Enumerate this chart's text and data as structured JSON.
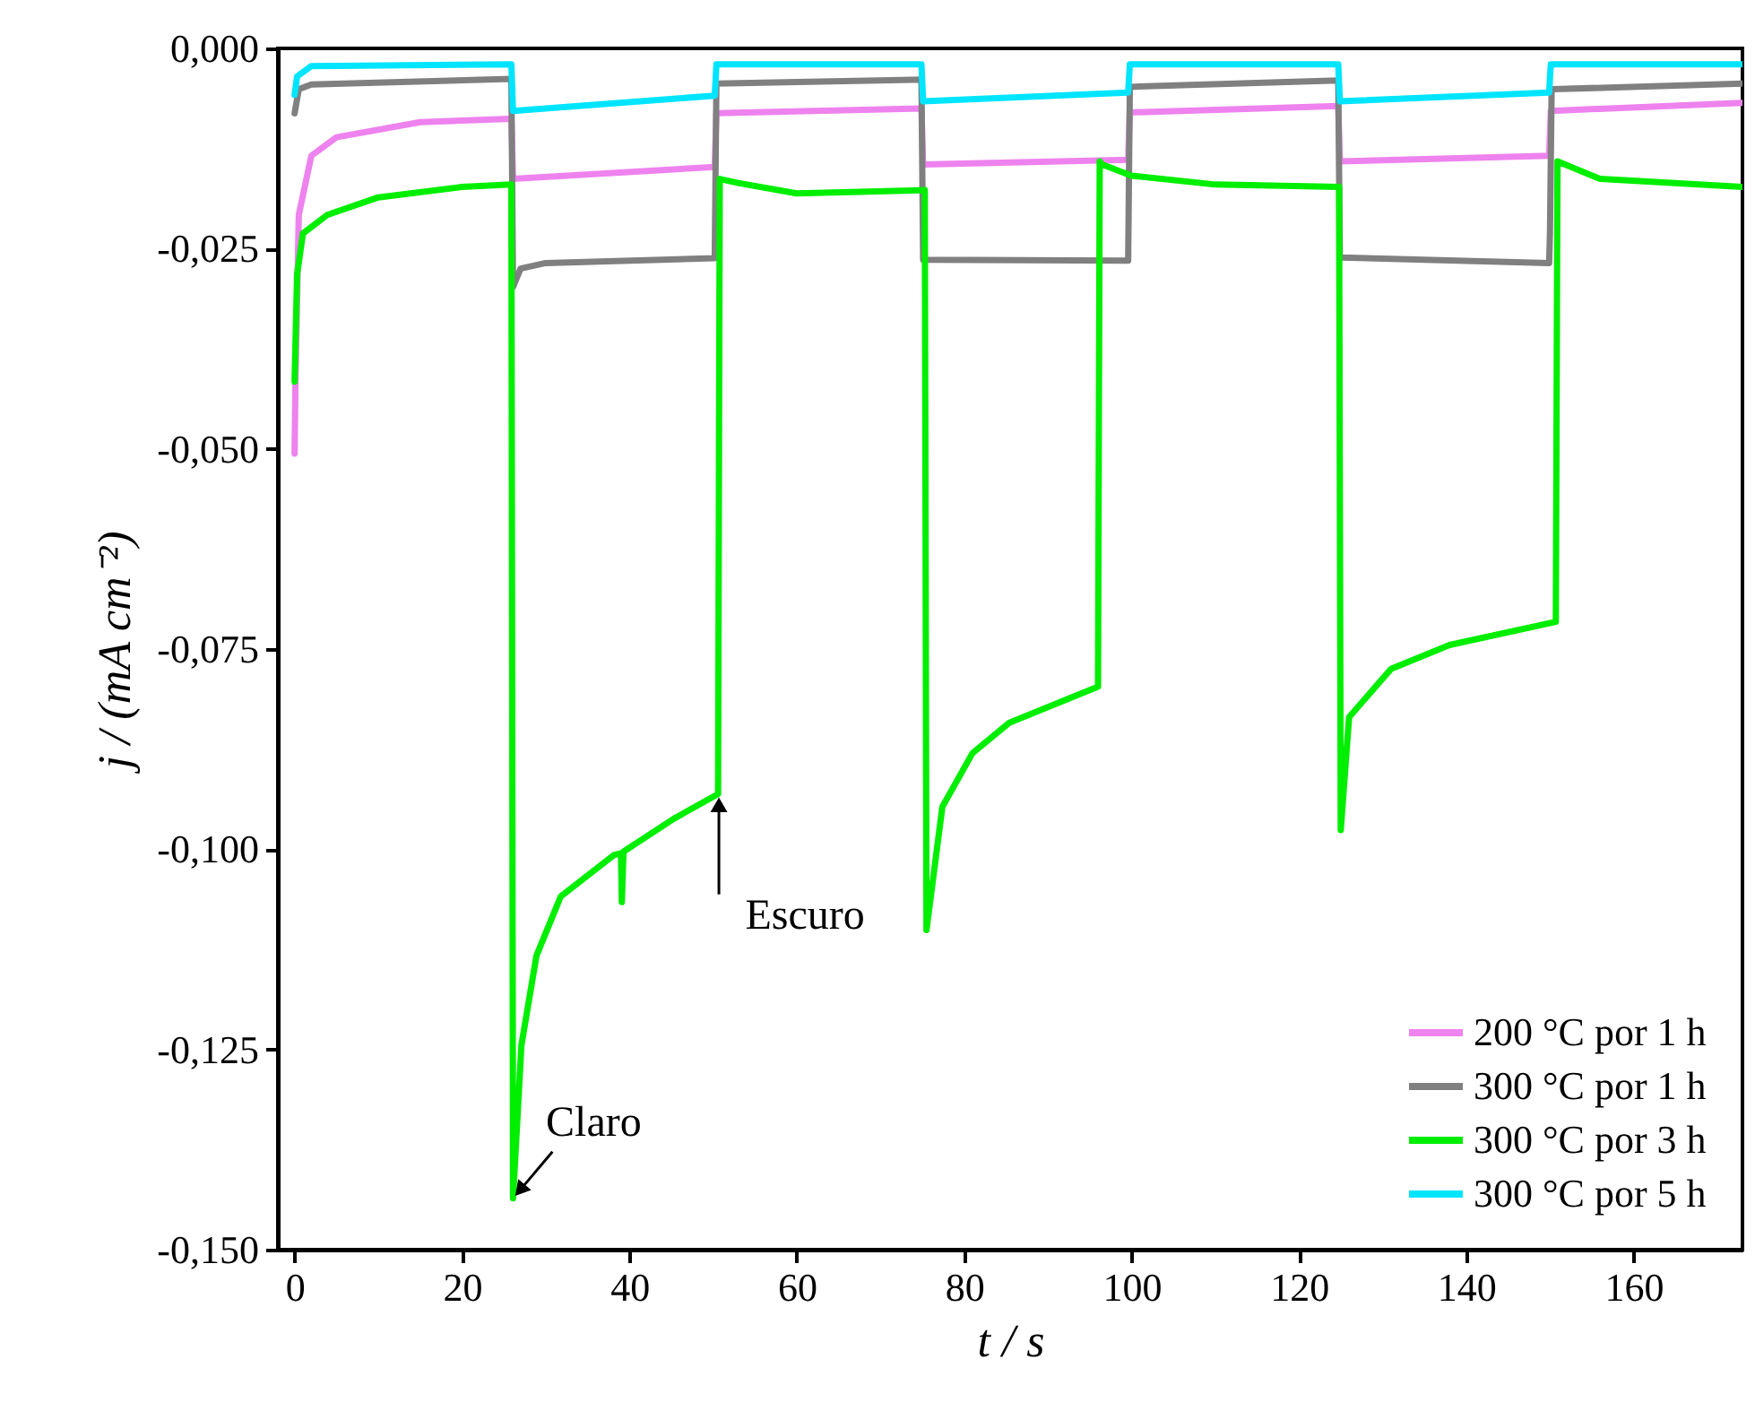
{
  "chart_data": {
    "type": "line",
    "xlabel": "t / s",
    "ylabel": "j / (mA cm⁻²)",
    "xlim": [
      -2,
      173
    ],
    "ylim": [
      -0.15,
      0
    ],
    "xticks": [
      0,
      20,
      40,
      60,
      80,
      100,
      120,
      140,
      160
    ],
    "yticks": [
      {
        "value": 0,
        "label": "0,000"
      },
      {
        "value": -0.025,
        "label": "-0,025"
      },
      {
        "value": -0.05,
        "label": "-0,050"
      },
      {
        "value": -0.075,
        "label": "-0,075"
      },
      {
        "value": -0.1,
        "label": "-0,100"
      },
      {
        "value": -0.125,
        "label": "-0,125"
      },
      {
        "value": -0.15,
        "label": "-0,150"
      }
    ],
    "grid": false,
    "legend": "bottom right",
    "line_style": "solid",
    "annotations": [
      {
        "text": "Claro",
        "x": 26.1,
        "y": -0.1436
      },
      {
        "text": "Escuro",
        "x": 50.7,
        "y": -0.0931
      }
    ],
    "series": [
      {
        "name": "200 °C por 1 h",
        "color": "#ee82ee",
        "x": [
          0,
          0.1,
          0.5,
          2,
          5,
          15,
          25.9,
          26.1,
          50.2,
          50.4,
          74.9,
          75.1,
          99.6,
          99.8,
          124.7,
          124.9,
          149.9,
          150.1,
          173
        ],
        "values": [
          -0.0506,
          -0.042,
          -0.0208,
          -0.0134,
          -0.0111,
          -0.0092,
          -0.0088,
          -0.0163,
          -0.0148,
          -0.0081,
          -0.0075,
          -0.0145,
          -0.0139,
          -0.008,
          -0.0072,
          -0.0141,
          -0.0134,
          -0.0078,
          -0.0068
        ]
      },
      {
        "name": "300 °C por 1 h",
        "color": "#808080",
        "x": [
          0,
          0.5,
          2,
          25.9,
          26.1,
          27,
          30,
          50.2,
          50.4,
          74.9,
          75.1,
          99.6,
          99.8,
          124.7,
          124.9,
          149.9,
          150,
          150.2,
          173
        ],
        "values": [
          -0.0081,
          -0.0051,
          -0.0045,
          -0.0038,
          -0.0298,
          -0.0275,
          -0.0268,
          -0.0262,
          -0.0044,
          -0.0039,
          -0.0264,
          -0.0265,
          -0.0048,
          -0.004,
          -0.0261,
          -0.0268,
          -0.0231,
          -0.0051,
          -0.0044
        ]
      },
      {
        "name": "300 °C por 3 h",
        "color": "#00ee00",
        "x": [
          0,
          0.3,
          1,
          3.9,
          10,
          20,
          25.9,
          26.1,
          27.1,
          28.9,
          31.8,
          38.2,
          39,
          39.1,
          39.3,
          45.3,
          50.6,
          50.8,
          53,
          60,
          75.3,
          75.5,
          77.4,
          81,
          85.4,
          96,
          96.2,
          96.5,
          100,
          110,
          124.8,
          125,
          126,
          131,
          138,
          150.7,
          150.9,
          156,
          173
        ],
        "values": [
          -0.0416,
          -0.0282,
          -0.0231,
          -0.0208,
          -0.0186,
          -0.0173,
          -0.017,
          -0.1436,
          -0.1245,
          -0.1133,
          -0.1059,
          -0.1007,
          -0.1005,
          -0.1066,
          -0.1003,
          -0.0962,
          -0.0931,
          -0.0163,
          -0.0168,
          -0.0181,
          -0.0177,
          -0.1101,
          -0.0947,
          -0.088,
          -0.0842,
          -0.0797,
          -0.0141,
          -0.0145,
          -0.0159,
          -0.017,
          -0.0173,
          -0.0976,
          -0.0835,
          -0.0775,
          -0.0745,
          -0.0716,
          -0.0141,
          -0.0163,
          -0.0173
        ]
      },
      {
        "name": "300 °C por 5 h",
        "color": "#00e5ff",
        "x": [
          0,
          0.3,
          2,
          25.9,
          26.1,
          50.2,
          50.4,
          74.9,
          75.1,
          99.6,
          99.8,
          124.7,
          124.9,
          149.9,
          150.1,
          173
        ],
        "values": [
          -0.0058,
          -0.0035,
          -0.0022,
          -0.002,
          -0.0078,
          -0.0059,
          -0.002,
          -0.002,
          -0.0066,
          -0.0055,
          -0.002,
          -0.002,
          -0.0066,
          -0.0055,
          -0.002,
          -0.002
        ]
      }
    ]
  }
}
